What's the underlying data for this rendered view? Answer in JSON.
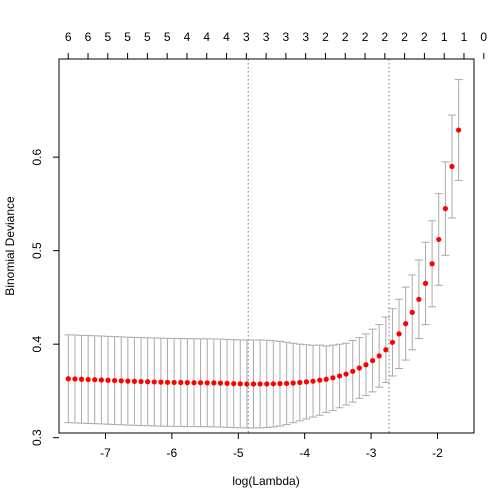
{
  "chart_data": {
    "type": "scatter",
    "title": "",
    "xlabel": "log(Lambda)",
    "ylabel": "Binomial Deviance",
    "xlim": [
      -7.7,
      -1.45
    ],
    "ylim": [
      0.305,
      0.705
    ],
    "x_ticks": [
      -7,
      -6,
      -5,
      -4,
      -3,
      -2
    ],
    "y_ticks": [
      0.3,
      0.4,
      0.5,
      0.6
    ],
    "y_tick_labels": [
      "0.3",
      "0.4",
      "0.5",
      "0.6"
    ],
    "top_axis_labels": [
      "6",
      "6",
      "5",
      "5",
      "5",
      "5",
      "4",
      "4",
      "4",
      "3",
      "3",
      "3",
      "3",
      "2",
      "2",
      "2",
      "2",
      "2",
      "2",
      "1",
      "1",
      "0"
    ],
    "top_axis_x": [
      -7.561,
      -7.263,
      -6.965,
      -6.667,
      -6.369,
      -6.071,
      -5.773,
      -5.475,
      -5.177,
      -4.879,
      -4.581,
      -4.283,
      -3.985,
      -3.687,
      -3.389,
      -3.091,
      -2.793,
      -2.495,
      -2.197,
      -1.899,
      -1.601,
      -1.303
    ],
    "vlines_x": [
      -4.85,
      -2.73
    ],
    "marker_color": "#ff0000",
    "errorbar_color": "#aaaaaa",
    "series": [
      {
        "x": [
          -7.56,
          -7.46,
          -7.361,
          -7.261,
          -7.162,
          -7.062,
          -6.962,
          -6.863,
          -6.763,
          -6.663,
          -6.564,
          -6.464,
          -6.365,
          -6.265,
          -6.165,
          -6.066,
          -5.966,
          -5.866,
          -5.767,
          -5.667,
          -5.568,
          -5.468,
          -5.368,
          -5.269,
          -5.169,
          -5.069,
          -4.97,
          -4.87,
          -4.771,
          -4.671,
          -4.571,
          -4.472,
          -4.372,
          -4.272,
          -4.173,
          -4.073,
          -3.974,
          -3.874,
          -3.774,
          -3.675,
          -3.575,
          -3.475,
          -3.376,
          -3.276,
          -3.177,
          -3.077,
          -2.977,
          -2.878,
          -2.778,
          -2.678,
          -2.579,
          -2.479,
          -2.38,
          -2.28,
          -2.18,
          -2.081,
          -1.981,
          -1.881,
          -1.782,
          -1.682
        ],
        "y": [
          0.363,
          0.3628,
          0.3625,
          0.3622,
          0.362,
          0.3617,
          0.3614,
          0.3611,
          0.3608,
          0.3605,
          0.3602,
          0.36,
          0.3598,
          0.3596,
          0.3594,
          0.3592,
          0.3591,
          0.359,
          0.3589,
          0.3588,
          0.3588,
          0.3587,
          0.3586,
          0.3584,
          0.3581,
          0.3578,
          0.3576,
          0.3574,
          0.3574,
          0.3575,
          0.3575,
          0.3576,
          0.3578,
          0.358,
          0.3585,
          0.359,
          0.3597,
          0.3604,
          0.3615,
          0.3625,
          0.364,
          0.366,
          0.368,
          0.371,
          0.3745,
          0.378,
          0.3825,
          0.3875,
          0.394,
          0.402,
          0.411,
          0.422,
          0.434,
          0.448,
          0.465,
          0.486,
          0.512,
          0.545,
          0.59,
          0.629
        ],
        "lower": [
          0.316,
          0.3158,
          0.3155,
          0.3152,
          0.315,
          0.3147,
          0.3144,
          0.3141,
          0.3138,
          0.3135,
          0.3132,
          0.313,
          0.3128,
          0.3126,
          0.3124,
          0.3122,
          0.3121,
          0.312,
          0.3119,
          0.3118,
          0.3118,
          0.3117,
          0.3116,
          0.3114,
          0.3111,
          0.3108,
          0.3106,
          0.3104,
          0.3104,
          0.3105,
          0.3108,
          0.3115,
          0.3125,
          0.314,
          0.316,
          0.318,
          0.32,
          0.322,
          0.324,
          0.327,
          0.329,
          0.332,
          0.335,
          0.338,
          0.342,
          0.345,
          0.349,
          0.354,
          0.359,
          0.366,
          0.374,
          0.383,
          0.394,
          0.406,
          0.421,
          0.44,
          0.463,
          0.495,
          0.535,
          0.575
        ],
        "upper": [
          0.41,
          0.4098,
          0.4095,
          0.4092,
          0.409,
          0.4087,
          0.4084,
          0.4081,
          0.4078,
          0.4075,
          0.4072,
          0.407,
          0.4068,
          0.4066,
          0.4064,
          0.4062,
          0.4061,
          0.406,
          0.4059,
          0.4058,
          0.4058,
          0.4057,
          0.4056,
          0.4054,
          0.4051,
          0.4048,
          0.4046,
          0.4044,
          0.4044,
          0.4045,
          0.4042,
          0.4037,
          0.4031,
          0.402,
          0.401,
          0.4,
          0.3994,
          0.3988,
          0.399,
          0.398,
          0.399,
          0.4,
          0.401,
          0.404,
          0.407,
          0.411,
          0.416,
          0.421,
          0.429,
          0.438,
          0.448,
          0.461,
          0.474,
          0.49,
          0.509,
          0.532,
          0.561,
          0.595,
          0.645,
          0.683
        ]
      }
    ]
  }
}
